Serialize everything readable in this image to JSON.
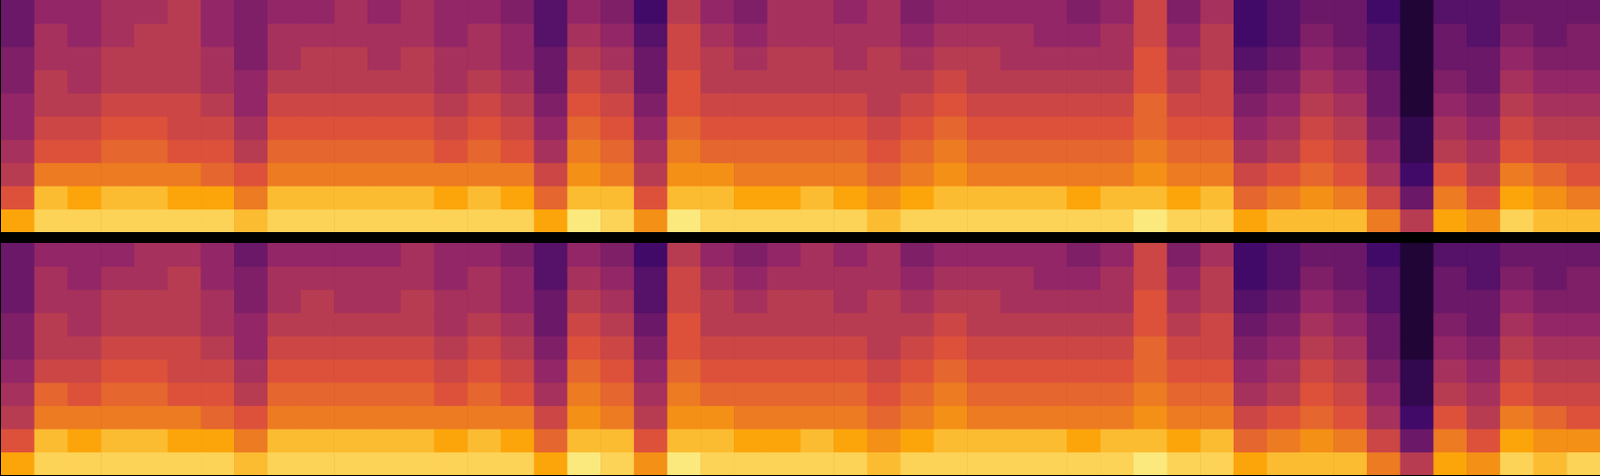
{
  "chart_data": [
    {
      "type": "heatmap",
      "tick_labels": false,
      "xlim": [
        0,
        48
      ],
      "ylim": [
        0,
        10
      ],
      "color_range": [
        0,
        10
      ],
      "cells": [
        [
          8,
          6,
          5,
          4.5,
          4,
          4,
          3.5,
          3.5,
          3,
          3
        ],
        [
          9,
          8.5,
          7,
          6,
          5.5,
          5,
          5,
          4.5,
          4.5,
          4
        ],
        [
          9,
          8,
          7,
          6,
          5.5,
          5,
          4.5,
          4.5,
          4,
          4
        ],
        [
          9,
          8.5,
          7,
          6.5,
          6,
          5.5,
          5,
          5,
          4.5,
          4.5
        ],
        [
          9,
          8.5,
          7,
          6.5,
          6,
          5.5,
          5,
          5,
          5,
          4.5
        ],
        [
          9,
          8,
          7,
          6,
          5.5,
          5.5,
          5,
          5,
          5,
          5
        ],
        [
          9,
          8,
          6.5,
          6,
          5.5,
          5,
          4.5,
          4.5,
          4,
          4
        ],
        [
          8.5,
          7,
          6,
          5,
          4.5,
          4,
          4,
          3.5,
          3.5,
          3.5
        ],
        [
          9,
          8.5,
          7,
          6.5,
          6,
          5.5,
          5,
          4.5,
          4.5,
          4
        ],
        [
          9,
          8.5,
          7,
          6.5,
          6,
          5.5,
          5,
          5,
          4.5,
          4
        ],
        [
          9,
          8.5,
          7,
          6.5,
          6,
          5.5,
          5,
          5,
          4.5,
          4.5
        ],
        [
          9,
          8.5,
          7,
          6.5,
          6,
          5.5,
          5,
          4.5,
          4.5,
          4
        ],
        [
          9,
          8.5,
          7,
          6.5,
          6,
          5.5,
          5,
          5,
          4.5,
          4.5
        ],
        [
          9,
          8,
          7,
          6,
          5.5,
          5,
          4.5,
          4.5,
          4,
          4
        ],
        [
          9,
          8.5,
          7,
          6.5,
          6,
          5.5,
          5,
          4.5,
          4.5,
          4
        ],
        [
          9,
          8,
          7,
          6,
          5.5,
          5,
          4.5,
          4,
          4,
          3.5
        ],
        [
          8,
          6.5,
          5.5,
          4.5,
          4,
          3.5,
          3,
          3,
          2.5,
          2.5
        ],
        [
          9.5,
          8.5,
          7.5,
          7,
          6.5,
          6,
          5.5,
          5,
          4.5,
          4
        ],
        [
          9,
          8.5,
          7,
          6.5,
          6,
          5.5,
          5,
          4.5,
          4,
          3.5
        ],
        [
          7.5,
          6,
          5,
          4.5,
          4,
          3.5,
          3,
          3,
          2.5,
          2
        ],
        [
          9.5,
          8.5,
          7.5,
          7,
          6.5,
          6,
          6,
          5.5,
          5.5,
          5
        ],
        [
          9,
          8.5,
          7.5,
          6.5,
          6,
          5.5,
          5,
          5,
          4.5,
          4
        ],
        [
          9,
          8,
          7,
          6.5,
          6,
          5.5,
          5,
          4.5,
          4,
          3.5
        ],
        [
          9,
          8,
          7,
          6.5,
          6,
          5.5,
          5,
          5,
          4.5,
          4.5
        ],
        [
          9,
          8.5,
          7,
          6.5,
          6,
          5.5,
          5,
          5,
          4.5,
          4.5
        ],
        [
          9,
          8,
          7,
          6.5,
          6,
          5.5,
          5,
          4.5,
          4.5,
          4
        ],
        [
          8.5,
          7.5,
          6.5,
          6,
          5.5,
          5,
          5,
          5,
          4.5,
          4.5
        ],
        [
          9,
          8,
          7,
          6.5,
          6,
          5.5,
          5,
          4.5,
          4,
          3.5
        ],
        [
          9,
          8.5,
          7.5,
          7,
          6.5,
          6,
          5.5,
          5,
          4.5,
          4
        ],
        [
          9,
          8.5,
          7,
          6.5,
          6,
          5.5,
          5,
          5,
          4.5,
          4
        ],
        [
          9,
          8.5,
          7,
          6.5,
          6,
          5.5,
          5,
          4.5,
          4.5,
          4
        ],
        [
          9,
          8.5,
          7,
          6.5,
          6,
          5.5,
          5,
          4.5,
          4,
          4
        ],
        [
          9,
          8,
          7,
          6.5,
          6,
          5.5,
          5,
          4.5,
          4,
          3.5
        ],
        [
          9,
          8.5,
          7,
          6.5,
          6,
          5.5,
          5,
          4.5,
          4.5,
          4
        ],
        [
          9.5,
          8.5,
          7.5,
          7,
          6.5,
          6.5,
          6,
          6,
          5.5,
          5.5
        ],
        [
          9,
          8,
          7,
          6.5,
          6,
          5.5,
          5,
          4.5,
          4,
          3.5
        ],
        [
          9,
          8.5,
          7,
          6.5,
          6,
          5.5,
          5.5,
          5,
          5,
          4.5
        ],
        [
          8,
          6.5,
          5.5,
          4.5,
          4,
          3.5,
          3,
          2.5,
          2,
          2
        ],
        [
          8.5,
          7,
          6,
          5,
          4.5,
          4,
          3.5,
          3,
          2.5,
          2.5
        ],
        [
          8.5,
          7.5,
          6.5,
          6,
          5.5,
          5,
          4.5,
          4,
          3.5,
          3
        ],
        [
          8.5,
          7,
          6,
          5.5,
          5,
          4.5,
          4,
          3.5,
          3,
          3
        ],
        [
          7,
          5.5,
          4.5,
          4,
          3.5,
          3,
          3,
          2.5,
          2.5,
          2
        ],
        [
          5,
          3,
          2,
          1.5,
          1.5,
          1,
          1,
          1,
          1,
          1
        ],
        [
          8,
          7,
          6,
          5,
          4.5,
          4,
          3.5,
          3,
          3,
          2.5
        ],
        [
          7.5,
          6,
          5,
          4.5,
          4,
          3.5,
          3,
          3,
          2.5,
          2.5
        ],
        [
          9,
          8,
          7,
          6,
          5.5,
          5,
          4.5,
          4,
          3.5,
          3
        ],
        [
          8.5,
          7.5,
          6.5,
          5.5,
          5,
          4.5,
          4,
          3.5,
          3,
          3
        ],
        [
          8.5,
          7,
          6,
          5.5,
          5,
          4.5,
          4,
          3.5,
          3.5,
          3
        ]
      ]
    },
    {
      "type": "heatmap",
      "tick_labels": false,
      "xlim": [
        0,
        48
      ],
      "ylim": [
        0,
        10
      ],
      "color_range": [
        0,
        10
      ],
      "cells": [
        [
          8,
          6,
          5,
          4.5,
          4,
          3.5,
          3.5,
          3,
          3,
          3
        ],
        [
          9,
          8.5,
          7,
          6.5,
          5.5,
          5,
          5,
          4.5,
          4.5,
          4
        ],
        [
          9,
          8,
          7,
          6,
          5.5,
          5,
          4.5,
          4.5,
          4,
          4
        ],
        [
          9,
          8.5,
          7,
          6.5,
          6,
          5.5,
          5,
          5,
          4.5,
          4
        ],
        [
          9,
          8.5,
          7,
          6.5,
          6,
          5.5,
          5,
          5,
          4.5,
          4.5
        ],
        [
          9,
          8,
          7,
          6,
          5.5,
          5.5,
          5,
          5,
          5,
          4.5
        ],
        [
          9,
          8,
          6.5,
          6,
          5.5,
          5,
          4.5,
          4.5,
          4,
          4
        ],
        [
          8.5,
          7,
          6,
          5,
          4.5,
          4,
          4,
          3.5,
          3.5,
          3
        ],
        [
          9,
          8.5,
          7,
          6.5,
          6,
          5.5,
          5,
          4.5,
          4.5,
          4
        ],
        [
          9,
          8.5,
          7,
          6.5,
          6,
          5.5,
          5,
          5,
          4.5,
          4
        ],
        [
          9,
          8.5,
          7,
          6.5,
          6,
          5.5,
          5,
          4.5,
          4.5,
          4
        ],
        [
          9,
          8.5,
          7,
          6.5,
          6,
          5.5,
          5,
          4.5,
          4.5,
          4
        ],
        [
          9,
          8.5,
          7,
          6.5,
          6,
          5.5,
          5,
          5,
          4.5,
          4.5
        ],
        [
          9,
          8,
          7,
          6,
          5.5,
          5,
          4.5,
          4.5,
          4,
          4
        ],
        [
          9,
          8.5,
          7,
          6.5,
          6,
          5.5,
          5,
          4.5,
          4.5,
          4
        ],
        [
          9,
          8,
          7,
          6,
          5.5,
          5,
          4.5,
          4,
          4,
          3.5
        ],
        [
          8,
          6.5,
          5.5,
          4.5,
          4,
          3.5,
          3,
          3,
          2.5,
          2.5
        ],
        [
          9.5,
          8.5,
          7.5,
          7,
          6.5,
          6,
          5.5,
          5,
          4.5,
          4
        ],
        [
          9,
          8.5,
          7,
          6.5,
          6,
          5.5,
          5,
          4.5,
          4,
          3.5
        ],
        [
          7.5,
          6,
          5,
          4.5,
          4,
          3.5,
          3,
          2.5,
          2.5,
          2
        ],
        [
          9.5,
          8.5,
          7.5,
          7,
          6.5,
          6,
          6,
          5.5,
          5.5,
          5
        ],
        [
          9,
          8.5,
          7.5,
          6.5,
          6,
          5.5,
          5,
          5,
          4.5,
          4
        ],
        [
          9,
          8,
          7,
          6.5,
          6,
          5.5,
          5,
          4.5,
          4,
          3.5
        ],
        [
          9,
          8,
          7,
          6.5,
          6,
          5.5,
          5,
          5,
          4.5,
          4
        ],
        [
          9,
          8.5,
          7,
          6.5,
          6,
          5.5,
          5,
          5,
          4.5,
          4.5
        ],
        [
          9,
          8,
          7,
          6.5,
          6,
          5.5,
          5,
          4.5,
          4.5,
          4
        ],
        [
          8.5,
          7.5,
          6.5,
          6,
          5.5,
          5,
          5,
          5,
          4.5,
          4.5
        ],
        [
          9,
          8,
          7,
          6.5,
          6,
          5.5,
          5,
          4.5,
          4,
          3.5
        ],
        [
          9,
          8.5,
          7.5,
          7,
          6.5,
          6,
          5.5,
          5,
          4.5,
          4
        ],
        [
          9,
          8.5,
          7,
          6.5,
          6,
          5.5,
          5,
          5,
          4.5,
          4
        ],
        [
          9,
          8.5,
          7,
          6.5,
          6,
          5.5,
          5,
          4.5,
          4.5,
          4
        ],
        [
          9,
          8.5,
          7,
          6.5,
          6,
          5.5,
          5,
          4.5,
          4,
          4
        ],
        [
          9,
          8,
          7,
          6.5,
          6,
          5.5,
          5,
          4.5,
          4,
          3.5
        ],
        [
          9,
          8.5,
          7,
          6.5,
          6,
          5.5,
          5,
          4.5,
          4.5,
          4
        ],
        [
          9.5,
          8.5,
          7.5,
          7,
          6.5,
          6.5,
          6,
          6,
          5.5,
          5.5
        ],
        [
          9,
          8,
          7,
          6.5,
          6,
          5.5,
          5,
          4.5,
          4,
          3.5
        ],
        [
          9,
          8.5,
          7,
          6.5,
          6,
          5.5,
          5.5,
          5,
          5,
          4.5
        ],
        [
          8,
          6.5,
          5.5,
          4.5,
          4,
          3.5,
          3,
          2.5,
          2,
          2
        ],
        [
          8.5,
          7,
          6,
          5,
          4.5,
          4,
          3.5,
          3,
          2.5,
          2.5
        ],
        [
          8.5,
          7.5,
          6.5,
          6,
          5.5,
          5,
          4.5,
          4,
          3.5,
          3
        ],
        [
          8.5,
          7,
          6,
          5.5,
          5,
          4.5,
          4,
          3.5,
          3,
          3
        ],
        [
          7,
          5.5,
          4.5,
          4,
          3.5,
          3,
          3,
          2.5,
          2.5,
          2
        ],
        [
          5,
          3,
          2,
          1.5,
          1.5,
          1,
          1,
          1,
          1,
          1
        ],
        [
          8,
          7,
          6,
          5,
          4.5,
          4,
          3.5,
          3,
          3,
          2.5
        ],
        [
          7.5,
          6,
          5,
          4.5,
          4,
          3.5,
          3,
          3,
          2.5,
          2.5
        ],
        [
          9,
          8,
          7,
          6,
          5.5,
          5,
          4.5,
          4,
          3.5,
          3
        ],
        [
          8.5,
          7.5,
          6.5,
          5.5,
          5,
          4.5,
          4,
          3.5,
          3,
          3
        ],
        [
          9,
          7.5,
          6,
          5.5,
          5,
          4.5,
          4,
          3.5,
          3.5,
          3
        ]
      ]
    }
  ]
}
